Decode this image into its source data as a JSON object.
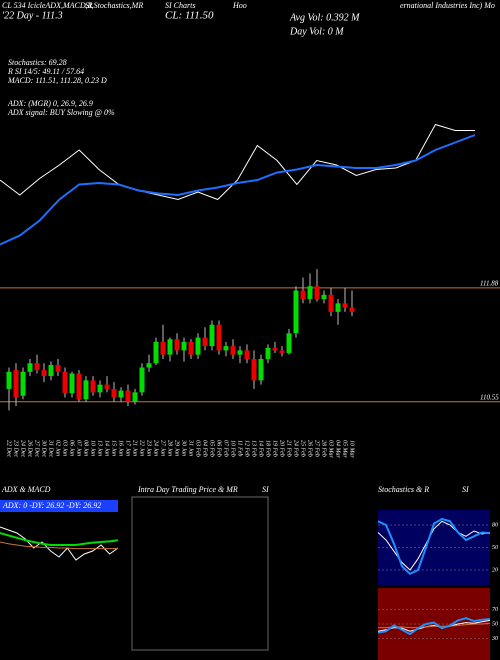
{
  "header": {
    "t1": "CL 534 IcicleADX,MACD,R",
    "t2": "SI,Stochastics,MR",
    "t3": "SI Charts",
    "t4": "Hoo",
    "t5": "ernational Industries Inc) Mo",
    "day": "'22 Day - 111.3",
    "close": "CL: 111.50",
    "avgvol": "Avg Vol: 0.392 M",
    "dayvol": "Day Vol: 0  M",
    "stoch": "Stochastics: 69.28",
    "rsi": "R    SI 14/5: 49.11 / 57.64",
    "macd": "MACD: 111.51, 111.28, 0.23 D",
    "adx": "ADX:                (MGR) 0, 26.9, 26.9",
    "adxsig": "ADX  signal:                              BUY Slowing @ 0%"
  },
  "panels": {
    "adx_title": "ADX  & MACD",
    "adx_values": "ADX: 0  -DY: 26.92  -DY: 26.92",
    "intra_title": "Intra Day Trading Price  & MR",
    "intra_si": "SI",
    "stoch_title": "Stochastics & R",
    "stoch_si": "SI"
  },
  "chart_data": [
    {
      "type": "candlestick",
      "x": [
        "22 Dec",
        "23 Dec",
        "24 Dec",
        "26 Dec",
        "27 Dec",
        "30 Dec",
        "31 Dec",
        "02 Jan",
        "03 Jan",
        "06 Jan",
        "07 Jan",
        "08 Jan",
        "10 Jan",
        "13 Jan",
        "14 Jan",
        "15 Jan",
        "16 Jan",
        "17 Jan",
        "21 Jan",
        "22 Jan",
        "23 Jan",
        "24 Jan",
        "27 Jan",
        "28 Jan",
        "29 Jan",
        "30 Jan",
        "31 Jan",
        "03 Feb",
        "04 Feb",
        "05 Feb",
        "06 Feb",
        "07 Feb",
        "10 Feb",
        "11 Feb",
        "12 Feb",
        "13 Feb",
        "14 Feb",
        "18 Feb",
        "19 Feb",
        "20 Feb",
        "21 Feb",
        "24 Feb",
        "25 Feb",
        "26 Feb",
        "27 Feb",
        "28 Feb",
        "03 Mar",
        "04 Mar",
        "05 Mar",
        "10 Mar"
      ],
      "ohlc": [
        [
          110.7,
          110.95,
          110.45,
          110.9
        ],
        [
          110.92,
          111.0,
          110.5,
          110.6
        ],
        [
          110.62,
          110.95,
          110.58,
          110.9
        ],
        [
          110.9,
          111.05,
          110.85,
          111.0
        ],
        [
          111.0,
          111.1,
          110.88,
          110.92
        ],
        [
          110.92,
          111.0,
          110.78,
          110.85
        ],
        [
          110.85,
          111.02,
          110.8,
          110.98
        ],
        [
          110.98,
          111.05,
          110.85,
          110.9
        ],
        [
          110.9,
          110.95,
          110.6,
          110.65
        ],
        [
          110.65,
          110.9,
          110.6,
          110.88
        ],
        [
          110.88,
          110.92,
          110.55,
          110.58
        ],
        [
          110.58,
          110.85,
          110.55,
          110.8
        ],
        [
          110.8,
          110.85,
          110.62,
          110.66
        ],
        [
          110.66,
          110.8,
          110.6,
          110.75
        ],
        [
          110.75,
          110.85,
          110.66,
          110.7
        ],
        [
          110.7,
          110.78,
          110.55,
          110.6
        ],
        [
          110.6,
          110.72,
          110.55,
          110.68
        ],
        [
          110.68,
          110.75,
          110.5,
          110.55
        ],
        [
          110.55,
          110.7,
          110.52,
          110.66
        ],
        [
          110.66,
          111.0,
          110.62,
          110.95
        ],
        [
          110.95,
          111.1,
          110.9,
          111.0
        ],
        [
          111.0,
          111.3,
          110.98,
          111.25
        ],
        [
          111.25,
          111.45,
          111.05,
          111.1
        ],
        [
          111.1,
          111.3,
          111.02,
          111.28
        ],
        [
          111.28,
          111.35,
          111.1,
          111.15
        ],
        [
          111.15,
          111.3,
          111.02,
          111.25
        ],
        [
          111.25,
          111.28,
          111.05,
          111.1
        ],
        [
          111.1,
          111.35,
          111.05,
          111.3
        ],
        [
          111.3,
          111.42,
          111.15,
          111.2
        ],
        [
          111.2,
          111.5,
          111.15,
          111.45
        ],
        [
          111.45,
          111.5,
          111.1,
          111.15
        ],
        [
          111.15,
          111.25,
          111.08,
          111.2
        ],
        [
          111.2,
          111.28,
          111.05,
          111.1
        ],
        [
          111.1,
          111.2,
          111.0,
          111.15
        ],
        [
          111.15,
          111.22,
          111.0,
          111.05
        ],
        [
          111.05,
          111.15,
          110.7,
          110.8
        ],
        [
          110.8,
          111.1,
          110.75,
          111.05
        ],
        [
          111.05,
          111.22,
          111.0,
          111.18
        ],
        [
          111.18,
          111.25,
          111.12,
          111.15
        ],
        [
          111.15,
          111.2,
          111.08,
          111.12
        ],
        [
          111.12,
          111.4,
          111.1,
          111.35
        ],
        [
          111.35,
          111.9,
          111.3,
          111.85
        ],
        [
          111.85,
          112.0,
          111.7,
          111.75
        ],
        [
          111.75,
          112.05,
          111.7,
          111.9
        ],
        [
          111.9,
          112.1,
          111.72,
          111.75
        ],
        [
          111.75,
          111.85,
          111.7,
          111.8
        ],
        [
          111.8,
          111.88,
          111.55,
          111.6
        ],
        [
          111.6,
          111.75,
          111.45,
          111.7
        ],
        [
          111.7,
          111.88,
          111.6,
          111.65
        ],
        [
          111.65,
          111.85,
          111.55,
          111.6
        ]
      ],
      "up_color": "#00dd00",
      "down_color": "#ee0000",
      "ylim": [
        110.22,
        112.44
      ],
      "yticks": [
        111.88,
        110.55
      ],
      "grid": true,
      "grid_color": "#c87533"
    },
    {
      "type": "line",
      "ylim": [
        0,
        100
      ],
      "series": [
        {
          "color": "#ffffff",
          "values": [
            50,
            40,
            51,
            60,
            70,
            57,
            47,
            43,
            40,
            37,
            42,
            37,
            50,
            73,
            63,
            47,
            63,
            60,
            53,
            57,
            58,
            63,
            87,
            83,
            83
          ]
        },
        {
          "color": "#1e6fff",
          "values": [
            7,
            13,
            23,
            37,
            47,
            48,
            47,
            43,
            41,
            40,
            43,
            45,
            48,
            50,
            55,
            57,
            60,
            59,
            58,
            58,
            60,
            63,
            70,
            75,
            80
          ]
        }
      ]
    },
    {
      "type": "line",
      "ylim": [
        0,
        100
      ],
      "series": [
        {
          "color": "#ffffff",
          "values": [
            80,
            75,
            70,
            60,
            45,
            55,
            40,
            30,
            45,
            25,
            35,
            40,
            50,
            35,
            45
          ]
        },
        {
          "color": "#c87533",
          "values": [
            55,
            52,
            50,
            48,
            47,
            46,
            46,
            45,
            45,
            44,
            44,
            44,
            44,
            44,
            44
          ]
        },
        {
          "color": "#00dd00",
          "values": [
            70,
            66,
            62,
            58,
            55,
            52,
            50,
            50,
            50,
            50,
            52,
            54,
            55,
            56,
            58
          ]
        }
      ]
    },
    {
      "type": "line",
      "bg": "#000060",
      "ylim": [
        0,
        100
      ],
      "yticks": [
        80,
        50,
        20
      ],
      "series": [
        {
          "color": "#ffffff",
          "values": [
            70,
            60,
            45,
            30,
            20,
            35,
            55,
            75,
            85,
            80,
            70,
            65,
            72,
            68,
            70
          ]
        },
        {
          "color": "#1e8fff",
          "values": [
            85,
            80,
            55,
            25,
            15,
            20,
            50,
            82,
            88,
            85,
            70,
            60,
            65,
            70,
            69
          ]
        }
      ]
    },
    {
      "type": "line",
      "bg": "#7a0000",
      "ylim": [
        0,
        100
      ],
      "yticks": [
        70,
        50,
        30
      ],
      "series": [
        {
          "color": "#ffffff",
          "values": [
            40,
            42,
            45,
            44,
            40,
            43,
            46,
            48,
            45,
            47,
            50,
            52,
            51,
            53,
            55
          ]
        },
        {
          "color": "#c87533",
          "values": [
            45,
            45,
            46,
            46,
            45,
            45,
            46,
            47,
            47,
            47,
            48,
            49,
            50,
            50,
            51
          ]
        },
        {
          "color": "#1e8fff",
          "values": [
            38,
            40,
            48,
            42,
            36,
            44,
            50,
            52,
            44,
            48,
            55,
            58,
            54,
            56,
            57
          ]
        }
      ]
    }
  ]
}
